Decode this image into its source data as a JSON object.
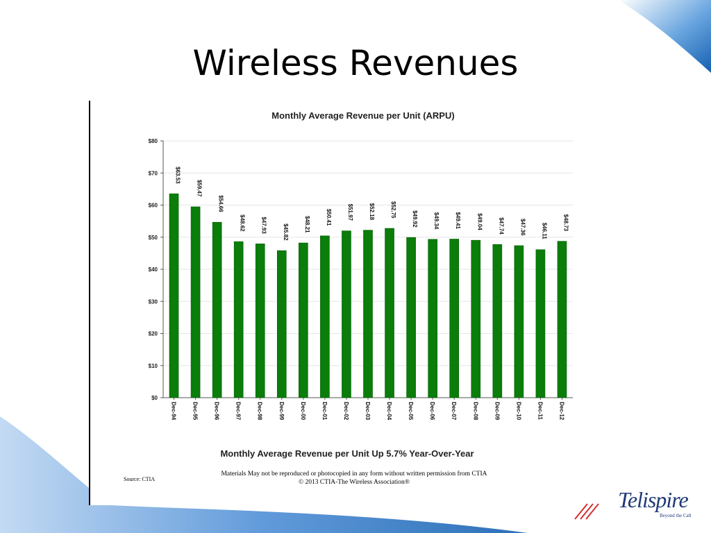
{
  "slide": {
    "title": "Wireless Revenues",
    "source": "Source: CTIA",
    "notice_line1": "Materials May not be reproduced or photocopied in any form without written permission from CTIA",
    "notice_line2": "© 2013 CTIA-The Wireless Association®",
    "logo_text": "Telispire",
    "logo_tagline": "Beyond the Call"
  },
  "colors": {
    "bar": "#0a7d0a",
    "bar_edge": "#0b5e0b",
    "accent_blue": "#1f5fa8",
    "logo_red": "#d33030"
  },
  "chart_data": {
    "type": "bar",
    "title": "Monthly Average Revenue per Unit (ARPU)",
    "subtitle": "Monthly Average Revenue per Unit Up 5.7% Year-Over-Year",
    "categories": [
      "Dec-94",
      "Dec-95",
      "Dec-96",
      "Dec-97",
      "Dec-98",
      "Dec-99",
      "Dec-00",
      "Dec-01",
      "Dec-02",
      "Dec-03",
      "Dec-04",
      "Dec-05",
      "Dec-06",
      "Dec-07",
      "Dec-08",
      "Dec-09",
      "Dec-10",
      "Dec-11",
      "Dec-12"
    ],
    "values": [
      63.53,
      59.47,
      54.66,
      48.62,
      47.93,
      45.82,
      48.21,
      50.41,
      51.97,
      52.18,
      52.75,
      49.92,
      49.34,
      49.41,
      49.04,
      47.74,
      47.36,
      46.11,
      48.73
    ],
    "data_labels": [
      "$63.53",
      "$59.47",
      "$54.66",
      "$48.62",
      "$47.93",
      "$45.82",
      "$48.21",
      "$50.41",
      "$51.97",
      "$52.18",
      "$52.75",
      "$49.92",
      "$49.34",
      "$49.41",
      "$49.04",
      "$47.74",
      "$47.36",
      "$46.11",
      "$48.73"
    ],
    "yticks": [
      "$0",
      "$10",
      "$20",
      "$30",
      "$40",
      "$50",
      "$60",
      "$70",
      "$80"
    ],
    "ylim": [
      0,
      80
    ],
    "grid": true,
    "legend": "none"
  }
}
